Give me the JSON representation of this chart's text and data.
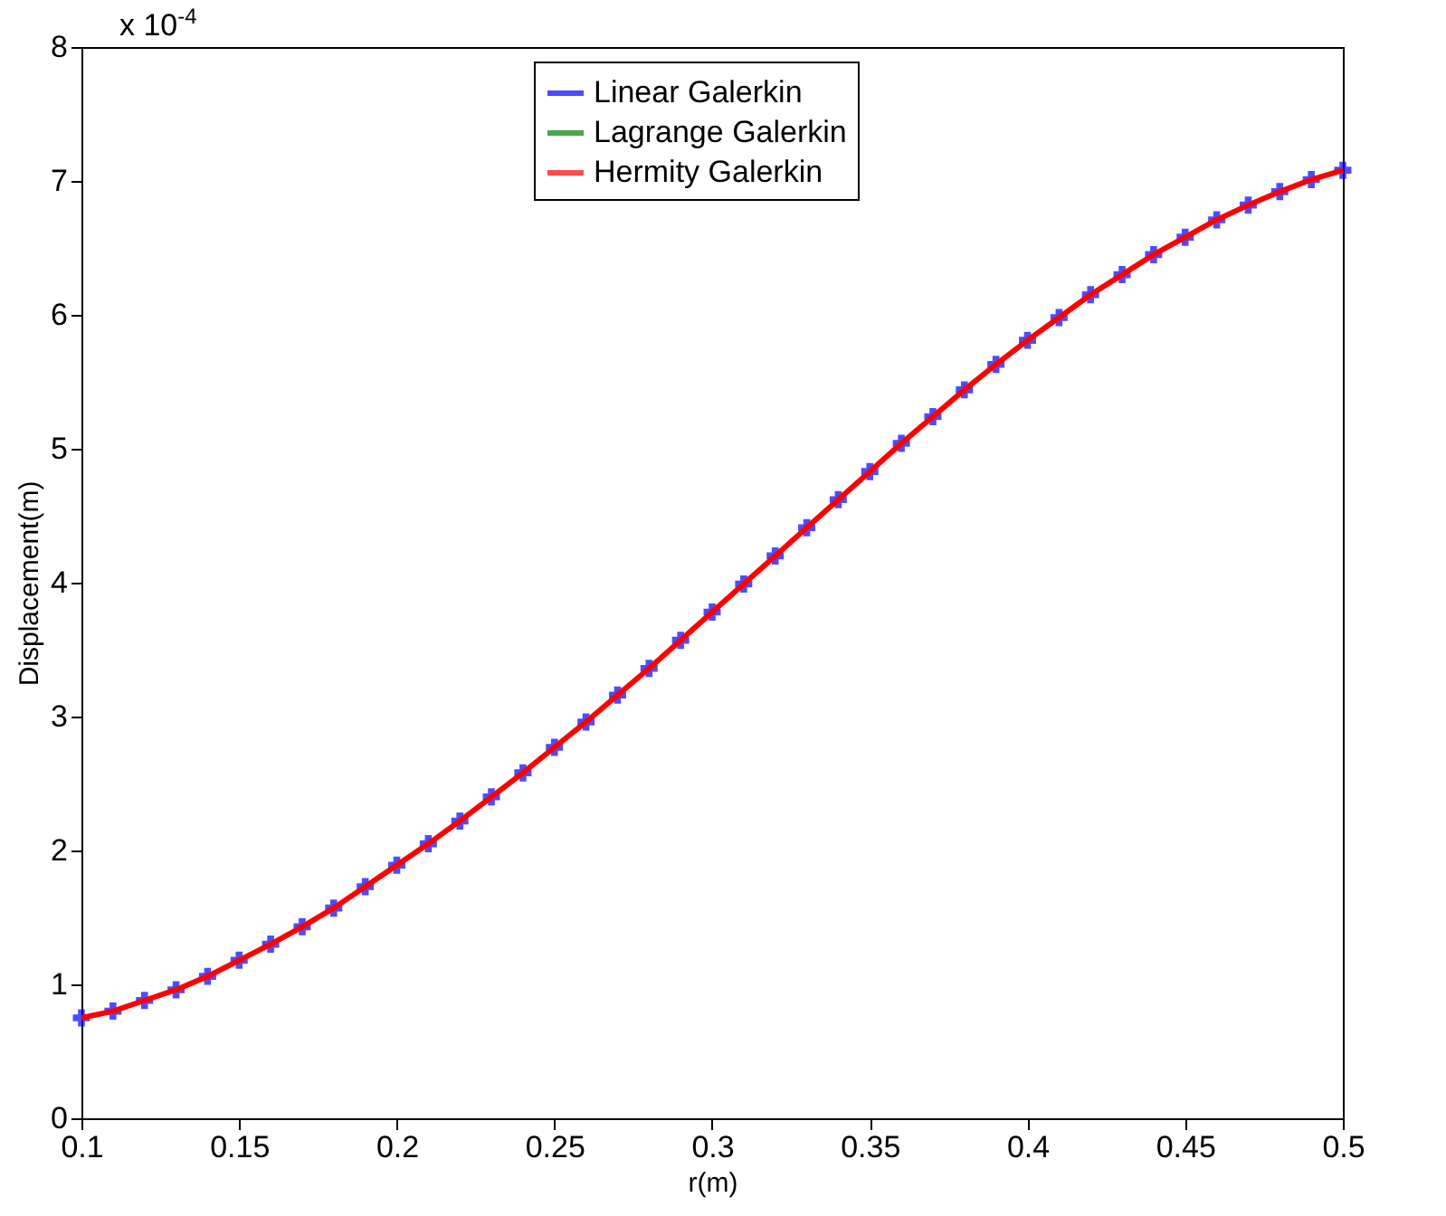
{
  "chart_data": {
    "type": "line",
    "xlabel": "r(m)",
    "ylabel": "Displacement(m)",
    "annotations": [
      "x 10$^{-4}$"
    ],
    "xlim": [
      0.1,
      0.5
    ],
    "xticks": [
      0.1,
      0.15,
      0.2,
      0.25,
      0.3,
      0.35,
      0.4,
      0.45,
      0.5
    ],
    "ylim": [
      0,
      8
    ],
    "yticks": [
      0,
      1,
      2,
      3,
      4,
      5,
      6,
      7,
      8
    ],
    "grid": false,
    "legend": "top",
    "x": [
      0.1,
      0.11,
      0.12,
      0.13,
      0.14,
      0.15,
      0.16,
      0.17,
      0.18,
      0.19,
      0.2,
      0.21,
      0.22,
      0.23,
      0.24,
      0.25,
      0.26,
      0.27,
      0.28,
      0.29,
      0.3,
      0.31,
      0.32,
      0.33,
      0.34,
      0.35,
      0.36,
      0.37,
      0.38,
      0.39,
      0.4,
      0.41,
      0.42,
      0.43,
      0.44,
      0.45,
      0.46,
      0.47,
      0.48,
      0.49,
      0.5
    ],
    "series": [
      {
        "name": "Linear Galerkin",
        "type": "scatter",
        "marker": "cross",
        "color": "#0000ff",
        "values": [
          0.75,
          0.8,
          0.88,
          0.96,
          1.06,
          1.18,
          1.3,
          1.43,
          1.57,
          1.73,
          1.89,
          2.05,
          2.22,
          2.4,
          2.58,
          2.77,
          2.96,
          3.16,
          3.36,
          3.57,
          3.78,
          3.99,
          4.2,
          4.41,
          4.62,
          4.83,
          5.04,
          5.24,
          5.44,
          5.63,
          5.81,
          5.98,
          6.15,
          6.3,
          6.45,
          6.58,
          6.71,
          6.82,
          6.92,
          7.01,
          7.08
        ]
      },
      {
        "name": "Lagrange Galerkin",
        "type": "line",
        "line_style": "dotted",
        "color": "#008000",
        "values": [
          null,
          null,
          null,
          null,
          null,
          null,
          null,
          null,
          null,
          null,
          null,
          null,
          null,
          null,
          null,
          null,
          null,
          null,
          null,
          null,
          null,
          null,
          null,
          null,
          null,
          null,
          null,
          null,
          null,
          null,
          null,
          null,
          null,
          null,
          null,
          null,
          null,
          null,
          null,
          null,
          null
        ]
      },
      {
        "name": "Hermity Galerkin",
        "type": "line",
        "line_style": "solid",
        "color": "#ff0000",
        "values": [
          0.75,
          0.8,
          0.88,
          0.96,
          1.06,
          1.18,
          1.3,
          1.43,
          1.57,
          1.73,
          1.89,
          2.05,
          2.22,
          2.4,
          2.58,
          2.77,
          2.96,
          3.16,
          3.36,
          3.57,
          3.78,
          3.99,
          4.2,
          4.41,
          4.62,
          4.83,
          5.04,
          5.24,
          5.44,
          5.63,
          5.81,
          5.98,
          6.15,
          6.3,
          6.45,
          6.58,
          6.71,
          6.82,
          6.92,
          7.01,
          7.08
        ]
      }
    ]
  }
}
